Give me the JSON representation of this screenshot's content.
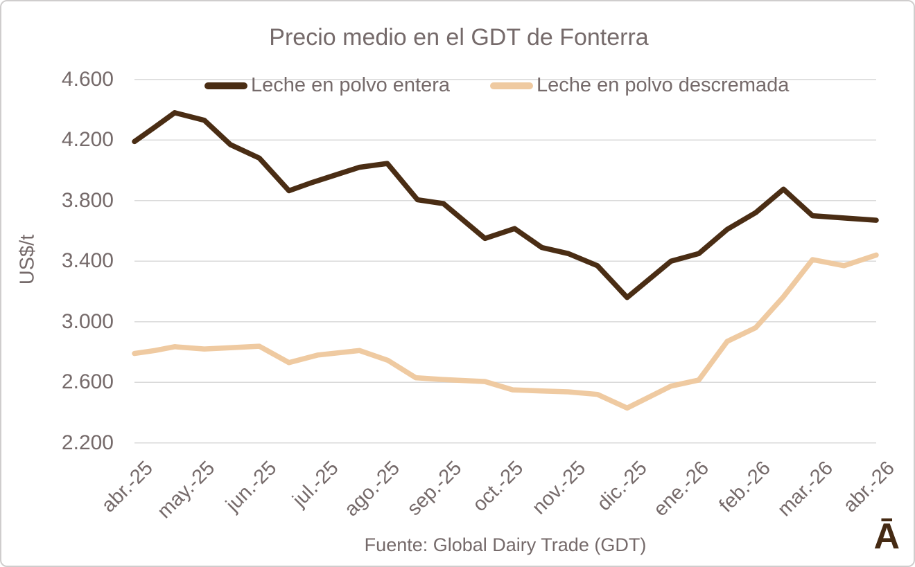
{
  "title": "Precio medio en el GDT de Fonterra",
  "y_axis_title": "US$/t",
  "footer": {
    "source_text": "Fuente: Global Dairy Trade (GDT)"
  },
  "logo": {
    "text": "Ā",
    "color": "#452a13"
  },
  "colors": {
    "text": "#756a6a",
    "gridline": "#dadada",
    "border": "#cfcdcd",
    "series_entera": "#4a2d14",
    "series_descremada": "#efcaa1"
  },
  "chart_data": {
    "type": "line",
    "title": "Precio medio en el GDT de Fonterra",
    "xlabel": "",
    "ylabel": "US$/t",
    "xlim": [
      0,
      12
    ],
    "ylim": [
      2200,
      4600
    ],
    "grid": "horizontal",
    "legend_position": "top",
    "yticks": [
      2200,
      2600,
      3000,
      3400,
      3800,
      4200,
      4600
    ],
    "ytick_labels": [
      "2.200",
      "2.600",
      "3.000",
      "3.400",
      "3.800",
      "4.200",
      "4.600"
    ],
    "x_categories": [
      "abr.-25",
      "may.-25",
      "jun.-25",
      "jul.-25",
      "ago.-25",
      "sep.-25",
      "oct.-25",
      "nov.-25",
      "dic.-25",
      "ene.-26",
      "feb.-26",
      "mar.-26",
      "abr.-26"
    ],
    "point_format": "[month_index_from_abr25, usd_per_tonne]",
    "series": [
      {
        "name": "Leche en polvo entera",
        "color": "#4a2d14",
        "points": [
          [
            0,
            4190
          ],
          [
            0.33,
            4285
          ],
          [
            0.65,
            4380
          ],
          [
            1.13,
            4330
          ],
          [
            1.55,
            4170
          ],
          [
            2.02,
            4080
          ],
          [
            2.5,
            3865
          ],
          [
            2.88,
            3920
          ],
          [
            3.26,
            3970
          ],
          [
            3.64,
            4020
          ],
          [
            4.09,
            4045
          ],
          [
            4.58,
            3805
          ],
          [
            5.0,
            3780
          ],
          [
            5.67,
            3550
          ],
          [
            6.15,
            3615
          ],
          [
            6.59,
            3490
          ],
          [
            7.02,
            3450
          ],
          [
            7.49,
            3370
          ],
          [
            7.97,
            3160
          ],
          [
            8.68,
            3400
          ],
          [
            9.13,
            3450
          ],
          [
            9.59,
            3610
          ],
          [
            10.05,
            3720
          ],
          [
            10.5,
            3875
          ],
          [
            10.97,
            3700
          ],
          [
            11.48,
            3685
          ],
          [
            12,
            3670
          ]
        ]
      },
      {
        "name": "Leche en polvo descremada",
        "color": "#efcaa1",
        "points": [
          [
            0,
            2790
          ],
          [
            0.33,
            2810
          ],
          [
            0.65,
            2835
          ],
          [
            1.13,
            2820
          ],
          [
            1.55,
            2828
          ],
          [
            2.02,
            2838
          ],
          [
            2.5,
            2730
          ],
          [
            2.97,
            2780
          ],
          [
            3.64,
            2810
          ],
          [
            4.1,
            2745
          ],
          [
            4.55,
            2630
          ],
          [
            5.0,
            2618
          ],
          [
            5.67,
            2605
          ],
          [
            6.12,
            2550
          ],
          [
            6.59,
            2543
          ],
          [
            7.02,
            2537
          ],
          [
            7.49,
            2520
          ],
          [
            7.97,
            2430
          ],
          [
            8.68,
            2575
          ],
          [
            9.13,
            2615
          ],
          [
            9.59,
            2870
          ],
          [
            10.05,
            2960
          ],
          [
            10.5,
            3165
          ],
          [
            10.97,
            3410
          ],
          [
            11.48,
            3370
          ],
          [
            12,
            3440
          ]
        ]
      }
    ]
  }
}
